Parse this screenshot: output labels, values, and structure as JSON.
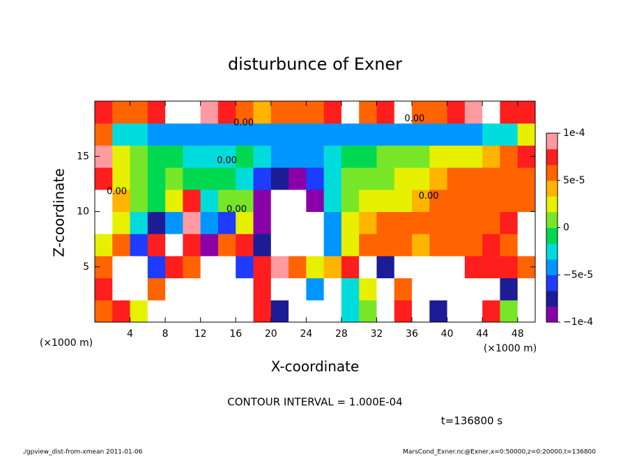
{
  "chart_data": {
    "type": "contour",
    "title": "disturbunce of Exner",
    "x_label": "X-coordinate",
    "y_label": "Z-coordinate",
    "axis_unit": "(×1000 m)",
    "contour_interval": "CONTOUR INTERVAL = 1.000E-04",
    "time_label": "t=136800 s",
    "footer_left": "./gpview_dist-from-xmean  2011-01-06",
    "footer_right": "MarsCond_Exner.nc@Exner,x=0:50000,z=0:20000,t=136800",
    "xlim": [
      0,
      50
    ],
    "ylim": [
      0,
      20
    ],
    "xticks": [
      4,
      8,
      12,
      16,
      20,
      24,
      28,
      32,
      36,
      40,
      44,
      48
    ],
    "yticks": [
      5,
      10,
      15
    ],
    "clim": [
      -0.0001,
      0.0001
    ],
    "cticks": [
      {
        "value": 0.0001,
        "label": "1e-4"
      },
      {
        "value": 5e-05,
        "label": "5e-5"
      },
      {
        "value": 0,
        "label": "0"
      },
      {
        "value": -5e-05,
        "label": "−5e-5"
      },
      {
        "value": -0.0001,
        "label": "−1e-4"
      }
    ],
    "colors": [
      "#8a00a8",
      "#1c1c96",
      "#1e3cff",
      "#0096ff",
      "#00dcdc",
      "#00d850",
      "#78e628",
      "#e6f000",
      "#ffb400",
      "#ff6400",
      "#ff1e1e",
      "#ff9aa0"
    ],
    "out_of_range_color": "#ffffff",
    "x": [
      1,
      3,
      5,
      7,
      9,
      11,
      13,
      15,
      17,
      19,
      21,
      23,
      25,
      27,
      29,
      31,
      33,
      35,
      37,
      39,
      41,
      43,
      45,
      47,
      49
    ],
    "z": [
      1,
      3,
      5,
      7,
      9,
      11,
      13,
      15,
      17,
      19
    ],
    "values": [
      [
        6e-05,
        8e-05,
        2e-05,
        0.00012,
        0.00012,
        0.00012,
        0.00012,
        -0.00012,
        -0.00012,
        8e-05,
        -8e-05,
        0.00012,
        -0.00012,
        -0.00012,
        -3e-05,
        0,
        -0.00012,
        8e-05,
        0.00012,
        -8e-05,
        0.00012,
        0.00012,
        8e-05,
        0,
        0.00012
      ],
      [
        8e-05,
        -0.00012,
        -0.00012,
        6e-05,
        0.00012,
        0.00012,
        0.00012,
        -0.00012,
        -0.00012,
        8e-05,
        0.00012,
        0.00012,
        -5e-05,
        -0.00012,
        -3e-05,
        2e-05,
        -0.00012,
        5e-05,
        0.00012,
        0.00012,
        0.00012,
        0.00012,
        0.00012,
        -8e-05,
        0.00012
      ],
      [
        6e-05,
        -0.00012,
        -0.00012,
        -6e-05,
        8e-05,
        5e-05,
        0.00012,
        0.00012,
        -6e-05,
        8e-05,
        0.0001,
        6e-05,
        3e-05,
        4e-05,
        8e-05,
        0.00012,
        -8e-05,
        0.00012,
        0.00012,
        0.00012,
        0.00012,
        8e-05,
        7e-05,
        7e-05,
        5e-05
      ],
      [
        3e-05,
        6e-05,
        -6e-05,
        8e-05,
        0.00012,
        8e-05,
        -0.0001,
        6e-05,
        8e-05,
        -8e-05,
        0.00012,
        0.00012,
        0.00012,
        -4e-05,
        3e-05,
        6e-05,
        5e-05,
        5e-05,
        4e-05,
        5e-05,
        6e-05,
        6e-05,
        7e-05,
        6e-05,
        0.00012
      ],
      [
        0.00012,
        3e-05,
        -3e-05,
        -7e-05,
        -4e-05,
        0.0001,
        -4e-05,
        -6e-05,
        3e-05,
        -9e-05,
        0.00012,
        0.00012,
        0.00012,
        -5e-05,
        3e-05,
        4e-05,
        5e-05,
        5e-05,
        6e-05,
        6e-05,
        6e-05,
        6e-05,
        6e-05,
        7e-05,
        0.00012
      ],
      [
        0.00012,
        4e-05,
        0,
        -1e-05,
        2e-05,
        8e-05,
        -2e-05,
        0,
        1e-05,
        -0.0001,
        0.00012,
        0.00012,
        -9e-05,
        -3e-05,
        1e-05,
        2e-05,
        3e-05,
        3e-05,
        4e-05,
        5e-05,
        6e-05,
        6e-05,
        6e-05,
        5e-05,
        6e-05
      ],
      [
        7e-05,
        2e-05,
        0,
        -1e-05,
        0,
        -1e-05,
        -1e-05,
        -1e-05,
        -2e-05,
        -6e-05,
        -8e-05,
        -9e-05,
        -6e-05,
        -2e-05,
        0,
        0,
        1e-05,
        2e-05,
        3e-05,
        4e-05,
        5e-05,
        5e-05,
        6e-05,
        6e-05,
        6e-05
      ],
      [
        9e-05,
        3e-05,
        0,
        -1e-05,
        -1e-05,
        -2e-05,
        -2e-05,
        -2e-05,
        -1e-05,
        -3e-05,
        -4e-05,
        -5e-05,
        -4e-05,
        -2e-05,
        -1e-05,
        -1e-05,
        0,
        0,
        1e-05,
        2e-05,
        2e-05,
        3e-05,
        4e-05,
        5e-05,
        7e-05
      ],
      [
        6e-05,
        -3e-05,
        -3e-05,
        -4e-05,
        -4e-05,
        -4e-05,
        -4e-05,
        -4e-05,
        -4e-05,
        -4e-05,
        -4e-05,
        -4e-05,
        -4e-05,
        -4e-05,
        -4e-05,
        -4e-05,
        -4e-05,
        -4e-05,
        -4e-05,
        -4e-05,
        -4e-05,
        -4e-05,
        -3e-05,
        -3e-05,
        3e-05
      ],
      [
        8e-05,
        6e-05,
        5e-05,
        7e-05,
        0.00012,
        0.00012,
        0.0001,
        7e-05,
        6e-05,
        4e-05,
        5e-05,
        6e-05,
        5e-05,
        8e-05,
        0.00012,
        6e-05,
        8e-05,
        0.00012,
        6e-05,
        5e-05,
        8e-05,
        0.0001,
        0.00012,
        8e-05,
        7e-05
      ]
    ],
    "contour_labels": [
      {
        "text": "0.00",
        "x": 16.9,
        "z": 18.0
      },
      {
        "text": "0.00",
        "x": 36.3,
        "z": 18.4
      },
      {
        "text": "0.00",
        "x": 15.0,
        "z": 14.6
      },
      {
        "text": "0.00",
        "x": 37.9,
        "z": 11.4
      },
      {
        "text": "0.00",
        "x": 2.5,
        "z": 11.8
      },
      {
        "text": "0.00",
        "x": 16.1,
        "z": 10.2
      }
    ]
  }
}
